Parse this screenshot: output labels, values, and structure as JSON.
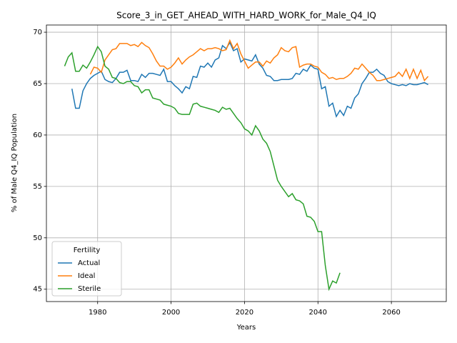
{
  "chart_data": {
    "type": "line",
    "title": "Score_3_in_GET_AHEAD_WITH_HARD_WORK_for_Male_Q4_IQ",
    "xlabel": "Years",
    "ylabel": "% of Male Q4_IQ Population",
    "xlim": [
      1966.05,
      2074.95
    ],
    "ylim": [
      43.8,
      70.7
    ],
    "xticks": [
      1980,
      2000,
      2020,
      2040,
      2060
    ],
    "yticks": [
      45,
      50,
      55,
      60,
      65,
      70
    ],
    "grid": true,
    "legend": {
      "title": "Fertility",
      "loc": "lower left"
    },
    "series": [
      {
        "name": "Actual",
        "color": "#1f77b4",
        "x": [
          1973,
          1974,
          1975,
          1976,
          1977,
          1978,
          1979,
          1980,
          1981,
          1982,
          1983,
          1984,
          1985,
          1986,
          1987,
          1988,
          1989,
          1990,
          1991,
          1992,
          1993,
          1994,
          1995,
          1996,
          1997,
          1998,
          1999,
          2000,
          2001,
          2002,
          2003,
          2004,
          2005,
          2006,
          2007,
          2008,
          2009,
          2010,
          2011,
          2012,
          2013,
          2014,
          2015,
          2016,
          2017,
          2018,
          2019,
          2020,
          2021,
          2022,
          2023,
          2024,
          2025,
          2026,
          2027,
          2028,
          2029,
          2030,
          2031,
          2032,
          2033,
          2034,
          2035,
          2036,
          2037,
          2038,
          2039,
          2040,
          2041,
          2042,
          2043,
          2044,
          2045,
          2046,
          2047,
          2048,
          2049,
          2050,
          2051,
          2052,
          2053,
          2054,
          2055,
          2056,
          2057,
          2058,
          2059,
          2060,
          2061,
          2062,
          2063,
          2064,
          2065,
          2066,
          2067,
          2068,
          2069,
          2070
        ],
        "values": [
          64.5,
          62.6,
          62.6,
          64.3,
          65.0,
          65.5,
          65.8,
          66.0,
          66.2,
          65.4,
          65.2,
          65.1,
          65.5,
          66.1,
          66.1,
          66.3,
          65.3,
          65.3,
          65.2,
          65.9,
          65.6,
          66.0,
          66.0,
          65.9,
          65.8,
          66.4,
          65.2,
          65.2,
          64.8,
          64.5,
          64.1,
          64.7,
          64.5,
          65.7,
          65.6,
          66.7,
          66.6,
          67.0,
          66.6,
          67.3,
          67.5,
          68.7,
          68.4,
          69.0,
          68.2,
          68.4,
          67.1,
          67.4,
          67.3,
          67.2,
          67.8,
          66.9,
          66.5,
          65.8,
          65.7,
          65.3,
          65.3,
          65.4,
          65.4,
          65.4,
          65.5,
          66.0,
          65.9,
          66.4,
          66.2,
          66.8,
          66.5,
          66.4,
          64.5,
          64.7,
          62.8,
          63.1,
          61.8,
          62.4,
          61.9,
          62.8,
          62.6,
          63.6,
          64.0,
          65.0,
          65.5,
          66.1,
          66.1,
          66.4,
          66.0,
          65.8,
          65.2,
          65.0,
          64.9,
          64.8,
          64.9,
          64.8,
          65.0,
          64.9,
          64.9,
          65.0,
          65.1,
          64.9
        ]
      },
      {
        "name": "Ideal",
        "color": "#ff7f0e",
        "x": [
          1978,
          1979,
          1980,
          1981,
          1982,
          1983,
          1984,
          1985,
          1986,
          1987,
          1988,
          1989,
          1990,
          1991,
          1992,
          1993,
          1994,
          1995,
          1996,
          1997,
          1998,
          1999,
          2000,
          2001,
          2002,
          2003,
          2004,
          2005,
          2006,
          2007,
          2008,
          2009,
          2010,
          2011,
          2012,
          2013,
          2014,
          2015,
          2016,
          2017,
          2018,
          2019,
          2020,
          2021,
          2022,
          2023,
          2024,
          2025,
          2026,
          2027,
          2028,
          2029,
          2030,
          2031,
          2032,
          2033,
          2034,
          2035,
          2036,
          2037,
          2038,
          2039,
          2040,
          2041,
          2042,
          2043,
          2044,
          2045,
          2046,
          2047,
          2048,
          2049,
          2050,
          2051,
          2052,
          2053,
          2054,
          2055,
          2056,
          2057,
          2058,
          2059,
          2060,
          2061,
          2062,
          2063,
          2064,
          2065,
          2066,
          2067,
          2068,
          2069,
          2070
        ],
        "values": [
          65.9,
          66.6,
          66.5,
          66.1,
          67.3,
          67.8,
          68.3,
          68.4,
          68.9,
          68.9,
          68.9,
          68.7,
          68.8,
          68.6,
          69.0,
          68.7,
          68.5,
          67.9,
          67.2,
          66.7,
          66.7,
          66.4,
          66.6,
          67.0,
          67.5,
          66.9,
          67.3,
          67.6,
          67.8,
          68.1,
          68.4,
          68.2,
          68.4,
          68.4,
          68.5,
          68.4,
          68.2,
          68.3,
          69.2,
          68.4,
          68.9,
          67.9,
          67.2,
          66.5,
          66.8,
          67.1,
          67.1,
          66.7,
          67.2,
          67.0,
          67.5,
          67.8,
          68.5,
          68.2,
          68.1,
          68.5,
          68.6,
          66.6,
          66.8,
          66.9,
          66.9,
          66.7,
          66.6,
          66.1,
          65.9,
          65.5,
          65.6,
          65.4,
          65.5,
          65.5,
          65.7,
          66.0,
          66.5,
          66.4,
          66.9,
          66.5,
          66.1,
          65.8,
          65.3,
          65.3,
          65.4,
          65.5,
          65.6,
          65.7,
          66.1,
          65.7,
          66.4,
          65.5,
          66.4,
          65.5,
          66.3,
          65.3,
          65.7
        ]
      },
      {
        "name": "Sterile",
        "color": "#2ca02c",
        "x": [
          1971,
          1972,
          1973,
          1974,
          1975,
          1976,
          1977,
          1978,
          1979,
          1980,
          1981,
          1982,
          1983,
          1984,
          1985,
          1986,
          1987,
          1988,
          1989,
          1990,
          1991,
          1992,
          1993,
          1994,
          1995,
          1996,
          1997,
          1998,
          1999,
          2000,
          2001,
          2002,
          2003,
          2004,
          2005,
          2006,
          2007,
          2008,
          2009,
          2010,
          2011,
          2012,
          2013,
          2014,
          2015,
          2016,
          2017,
          2018,
          2019,
          2020,
          2021,
          2022,
          2023,
          2024,
          2025,
          2026,
          2027,
          2028,
          2029,
          2030,
          2031,
          2032,
          2033,
          2034,
          2035,
          2036,
          2037,
          2038,
          2039,
          2040,
          2041,
          2042,
          2043,
          2044,
          2045,
          2046
        ],
        "values": [
          66.7,
          67.6,
          68.0,
          66.2,
          66.2,
          66.8,
          66.5,
          67.1,
          67.8,
          68.6,
          68.1,
          66.7,
          66.4,
          65.6,
          65.5,
          65.1,
          65.0,
          65.2,
          65.2,
          64.8,
          64.7,
          64.1,
          64.4,
          64.4,
          63.6,
          63.5,
          63.4,
          63.0,
          62.9,
          62.8,
          62.6,
          62.1,
          62.0,
          62.0,
          62.0,
          63.0,
          63.1,
          62.8,
          62.7,
          62.6,
          62.5,
          62.4,
          62.2,
          62.7,
          62.5,
          62.6,
          62.1,
          61.6,
          61.2,
          60.6,
          60.4,
          60.0,
          60.9,
          60.4,
          59.6,
          59.2,
          58.4,
          57.0,
          55.6,
          55.0,
          54.5,
          54.0,
          54.3,
          53.7,
          53.6,
          53.3,
          52.1,
          52.0,
          51.6,
          50.6,
          50.6,
          47.3,
          45.0,
          45.8,
          45.6,
          46.6
        ]
      }
    ]
  }
}
